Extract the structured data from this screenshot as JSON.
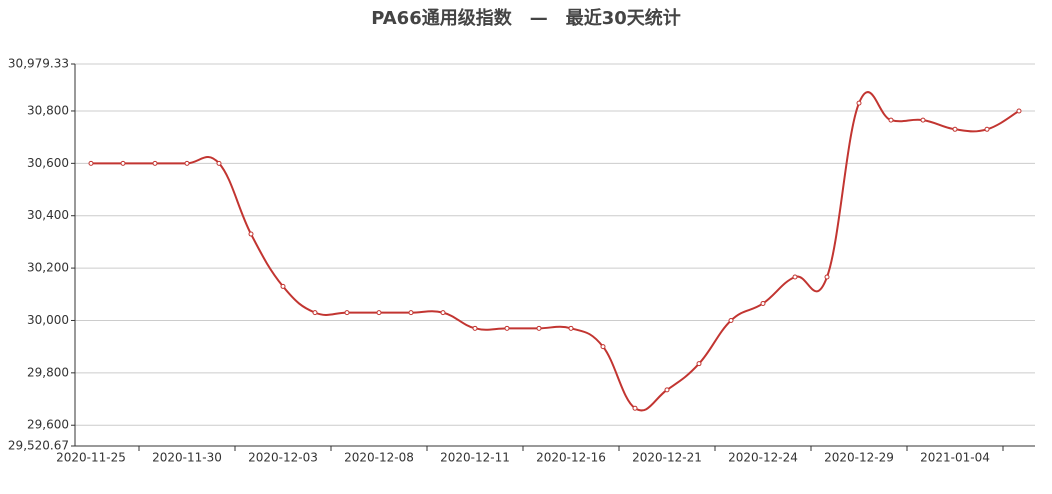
{
  "chart_data": {
    "type": "line",
    "title": "PA66通用级指数　—　最近30天统计",
    "categories": [
      "2020-11-25",
      null,
      null,
      "2020-11-30",
      null,
      null,
      "2020-12-03",
      null,
      null,
      "2020-12-08",
      null,
      null,
      "2020-12-11",
      null,
      null,
      "2020-12-16",
      null,
      null,
      "2020-12-21",
      null,
      null,
      "2020-12-24",
      null,
      null,
      "2020-12-29",
      null,
      null,
      "2021-01-04",
      null,
      null
    ],
    "values": [
      30600,
      30600,
      30600,
      30600,
      30600,
      30330,
      30130,
      30030,
      30030,
      30030,
      30030,
      30030,
      29970,
      29970,
      29970,
      29970,
      29900,
      29665,
      29735,
      29835,
      30000,
      30065,
      30166,
      30166,
      30830,
      30765,
      30765,
      30730,
      30730,
      30800
    ],
    "color": "#c23531",
    "ylim": [
      29520.67,
      30979.33
    ],
    "yticks": [
      {
        "value": 29520.67,
        "label": "29,520.67"
      },
      {
        "value": 29600,
        "label": "29,600"
      },
      {
        "value": 29800,
        "label": "29,800"
      },
      {
        "value": 30000,
        "label": "30,000"
      },
      {
        "value": 30200,
        "label": "30,200"
      },
      {
        "value": 30400,
        "label": "30,400"
      },
      {
        "value": 30600,
        "label": "30,600"
      },
      {
        "value": 30800,
        "label": "30,800"
      },
      {
        "value": 30979.33,
        "label": "30,979.33"
      }
    ],
    "grid": true,
    "smooth": true
  }
}
